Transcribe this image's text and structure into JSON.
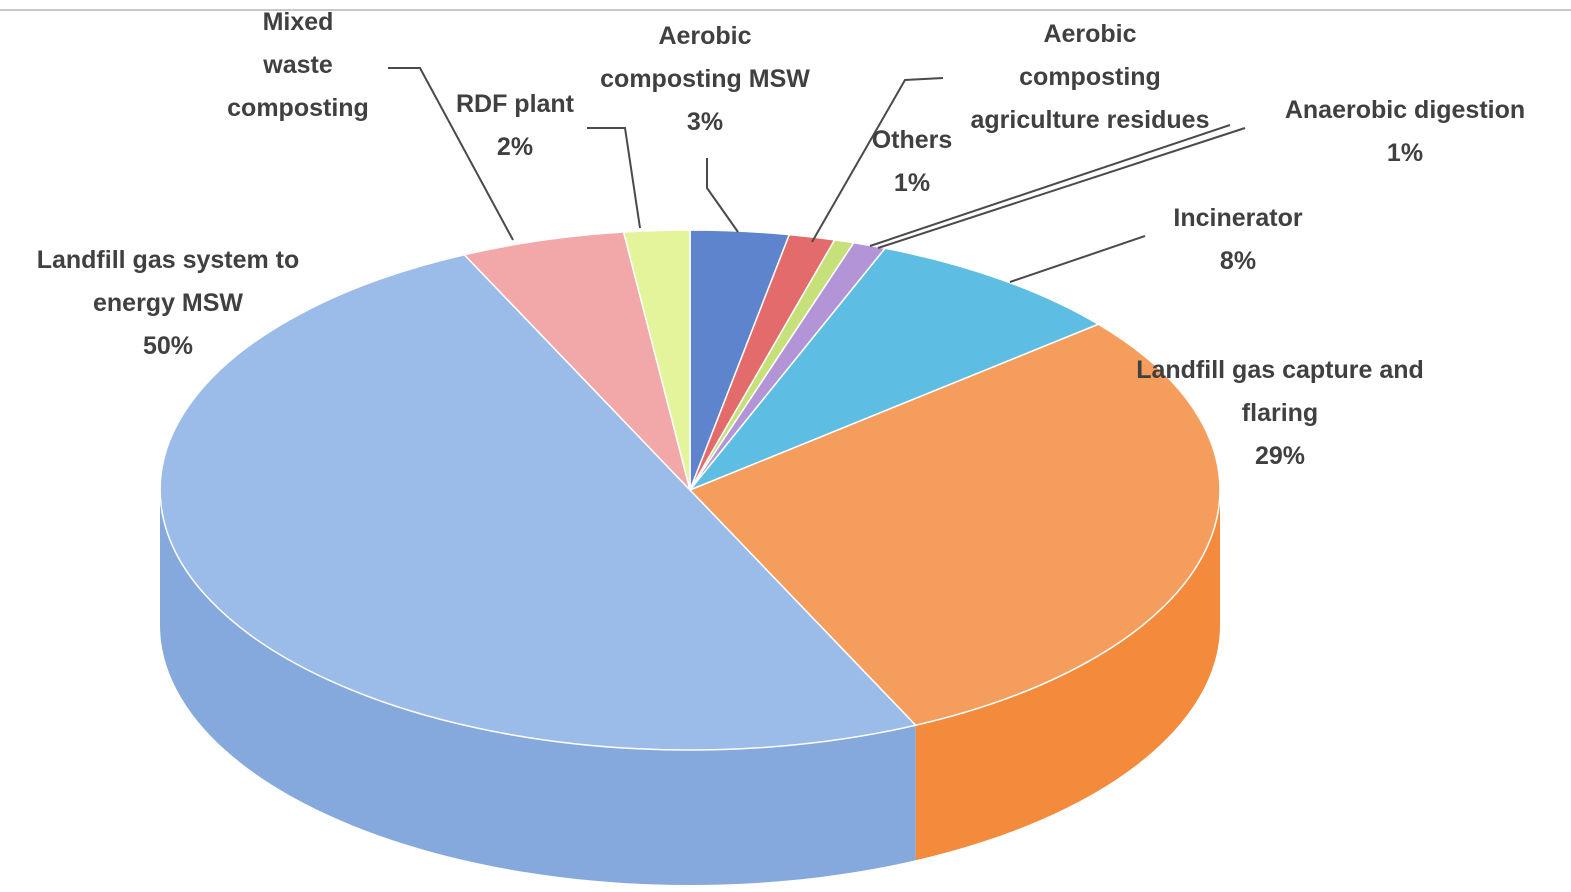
{
  "chart_data": {
    "type": "pie",
    "title": "",
    "style": "3d",
    "slices": [
      {
        "label": [
          "Landfill gas system to",
          "energy MSW"
        ],
        "value_label": "50%",
        "value": 50,
        "color": "#9bbbe8",
        "side_color": "#86a9dd"
      },
      {
        "label": [
          "Landfill gas capture and",
          "flaring"
        ],
        "value_label": "29%",
        "value": 29,
        "color": "#f59d5d",
        "side_color": "#f38a3c"
      },
      {
        "label": [
          "Incinerator"
        ],
        "value_label": "8%",
        "value": 8,
        "color": "#5dbde2",
        "side_color": "#45abd3"
      },
      {
        "label": [
          "Anaerobic digestion"
        ],
        "value_label": "1%",
        "value": 1,
        "color": "#b394d6",
        "side_color": "#9f7fc8"
      },
      {
        "label": [
          "Aerobic",
          "composting",
          "agriculture residues"
        ],
        "value_label": "",
        "value": 0.6,
        "color": "#c6e07a",
        "side_color": "#b4d166"
      },
      {
        "label": [
          "Others"
        ],
        "value_label": "1%",
        "value": 1.4,
        "color": "#e46b6b",
        "side_color": "#d45555"
      },
      {
        "label": [
          "Aerobic",
          "composting MSW"
        ],
        "value_label": "3%",
        "value": 3,
        "color": "#5d84cc",
        "side_color": "#4a70bb"
      },
      {
        "label": [
          "RDF plant"
        ],
        "value_label": "2%",
        "value": 2,
        "color": "#e3f49a",
        "side_color": "#d2e683"
      },
      {
        "label": [
          "Mixed",
          "waste",
          "composting"
        ],
        "value_label": "",
        "value": 5,
        "color": "#f2a8a8",
        "side_color": "#e69494"
      }
    ]
  }
}
